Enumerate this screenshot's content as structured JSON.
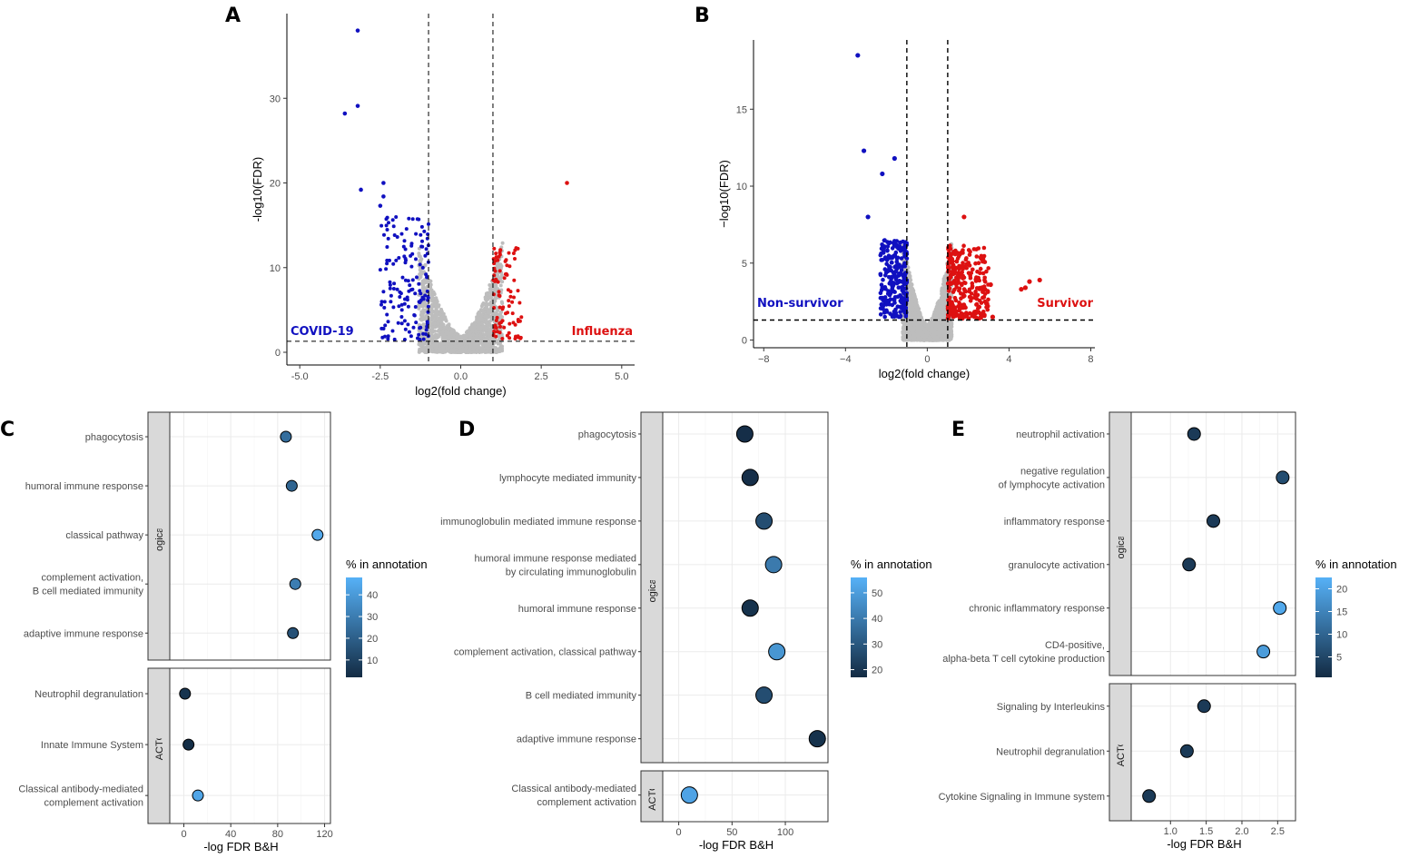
{
  "colors": {
    "down": "#1010c0",
    "up": "#dd1111",
    "ns": "#bdbdbd",
    "gradient_low": "#132b43",
    "gradient_high": "#56b1f7",
    "strip_fill": "#d9d9d9"
  },
  "panels": {
    "A": "A",
    "B": "B",
    "C": "C",
    "D": "D",
    "E": "E"
  },
  "chart_data": [
    {
      "id": "A",
      "type": "scatter",
      "subtype": "volcano",
      "xlabel": "log2(fold change)",
      "ylabel": "-log10(FDR)",
      "xlim": [
        -5.4,
        5.4
      ],
      "ylim": [
        -1.5,
        40
      ],
      "xticks": [
        -5.0,
        -2.5,
        0.0,
        2.5,
        5.0
      ],
      "xtick_labels": [
        "-5.0",
        "-2.5",
        "0.0",
        "2.5",
        "5.0"
      ],
      "yticks": [
        0,
        10,
        20,
        30
      ],
      "ytick_labels": [
        "0",
        "10",
        "20",
        "30"
      ],
      "vlines": [
        -1,
        1
      ],
      "hline": 1.3,
      "annotations": [
        {
          "text": "COVID-19",
          "color": "#1010c0",
          "side": "left"
        },
        {
          "text": "Influenza",
          "color": "#dd1111",
          "side": "right"
        }
      ],
      "labeled_points": [
        {
          "x": -3.2,
          "y": 38.0,
          "group": "down"
        },
        {
          "x": -3.6,
          "y": 28.2,
          "group": "down"
        },
        {
          "x": -3.2,
          "y": 29.1,
          "group": "down"
        },
        {
          "x": -3.1,
          "y": 19.2,
          "group": "down"
        },
        {
          "x": -2.4,
          "y": 20.0,
          "group": "down"
        },
        {
          "x": -2.4,
          "y": 18.4,
          "group": "down"
        },
        {
          "x": -2.5,
          "y": 17.3,
          "group": "down"
        },
        {
          "x": 3.3,
          "y": 20.0,
          "group": "up"
        }
      ],
      "clusters": [
        {
          "group": "down",
          "x_range": [
            -2.5,
            -1.0
          ],
          "y_range": [
            1.5,
            16
          ],
          "count": 150
        },
        {
          "group": "up",
          "x_range": [
            1.0,
            1.9
          ],
          "y_range": [
            1.5,
            12.5
          ],
          "count": 90
        },
        {
          "group": "ns",
          "x_range": [
            -1.3,
            1.3
          ],
          "y_range": [
            0,
            13
          ],
          "count": 1600
        }
      ]
    },
    {
      "id": "B",
      "type": "scatter",
      "subtype": "volcano",
      "xlabel": "log2(fold change)",
      "ylabel": "−log10(FDR)",
      "xlim": [
        -8.5,
        8.2
      ],
      "ylim": [
        -0.5,
        19.5
      ],
      "xticks": [
        -8,
        -4,
        0,
        4,
        8
      ],
      "xtick_labels": [
        "−8",
        "−4",
        "0",
        "4",
        "8"
      ],
      "yticks": [
        0,
        5,
        10,
        15
      ],
      "ytick_labels": [
        "0",
        "5",
        "10",
        "15"
      ],
      "vlines": [
        -1,
        1
      ],
      "hline": 1.3,
      "annotations": [
        {
          "text": "Non-survivor",
          "color": "#1010c0",
          "side": "left"
        },
        {
          "text": "Survivor",
          "color": "#dd1111",
          "side": "right"
        }
      ],
      "labeled_points": [
        {
          "x": -3.4,
          "y": 18.5,
          "group": "down"
        },
        {
          "x": -3.1,
          "y": 12.3,
          "group": "down"
        },
        {
          "x": -1.6,
          "y": 11.8,
          "group": "down"
        },
        {
          "x": -2.2,
          "y": 10.8,
          "group": "down"
        },
        {
          "x": -2.9,
          "y": 8.0,
          "group": "down"
        },
        {
          "x": 1.8,
          "y": 8.0,
          "group": "up"
        },
        {
          "x": 5.0,
          "y": 3.8,
          "group": "up"
        },
        {
          "x": 5.5,
          "y": 3.9,
          "group": "up"
        },
        {
          "x": 4.8,
          "y": 3.4,
          "group": "up"
        },
        {
          "x": 4.6,
          "y": 3.3,
          "group": "up"
        },
        {
          "x": 3.1,
          "y": 3.6,
          "group": "up"
        },
        {
          "x": 3.2,
          "y": 1.5,
          "group": "up"
        }
      ],
      "clusters": [
        {
          "group": "down",
          "x_range": [
            -2.3,
            -1.0
          ],
          "y_range": [
            1.5,
            6.5
          ],
          "count": 260
        },
        {
          "group": "up",
          "x_range": [
            1.0,
            3.0
          ],
          "y_range": [
            1.4,
            6.2
          ],
          "count": 300
        },
        {
          "group": "ns",
          "x_range": [
            -1.2,
            1.2
          ],
          "y_range": [
            0,
            6.5
          ],
          "count": 1800
        }
      ]
    },
    {
      "id": "C",
      "type": "scatter",
      "subtype": "faceted-dot",
      "xlabel": "-log FDR B&H",
      "xlim": [
        -12,
        125
      ],
      "xticks": [
        0,
        40,
        80,
        120
      ],
      "xtick_labels": [
        "0",
        "40",
        "80",
        "120"
      ],
      "legend": {
        "title": "% in annotation",
        "min": 2,
        "max": 48,
        "ticks": [
          10,
          20,
          30,
          40
        ]
      },
      "facets": [
        {
          "strip": "GO_Biological_Process",
          "items": [
            {
              "label": [
                "phagocytosis"
              ],
              "x": 87,
              "pct": 25
            },
            {
              "label": [
                "humoral immune response"
              ],
              "x": 92,
              "pct": 22
            },
            {
              "label": [
                "classical pathway"
              ],
              "x": 114,
              "pct": 45
            },
            {
              "label": [
                "complement activation,",
                "B cell mediated immunity"
              ],
              "x": 95,
              "pct": 30
            },
            {
              "label": [
                "adaptive immune response"
              ],
              "x": 93,
              "pct": 15
            }
          ]
        },
        {
          "strip": "REACTOME",
          "items": [
            {
              "label": [
                "Neutrophil degranulation"
              ],
              "x": 1,
              "pct": 5
            },
            {
              "label": [
                "Innate Immune System"
              ],
              "x": 4,
              "pct": 3
            },
            {
              "label": [
                "Classical antibody-mediated",
                "complement activation"
              ],
              "x": 12,
              "pct": 44
            }
          ]
        }
      ]
    },
    {
      "id": "D",
      "type": "scatter",
      "subtype": "faceted-dot",
      "xlabel": "-log FDR B&H",
      "xlim": [
        -15,
        140
      ],
      "xticks": [
        0,
        50,
        100
      ],
      "xtick_labels": [
        "0",
        "50",
        "100"
      ],
      "legend": {
        "title": "% in annotation",
        "min": 17,
        "max": 56,
        "ticks": [
          20,
          30,
          40,
          50
        ]
      },
      "facets": [
        {
          "strip": "GO_Biological_Process",
          "items": [
            {
              "label": [
                "phagocytosis"
              ],
              "x": 62,
              "pct": 18
            },
            {
              "label": [
                "lymphocyte mediated immunity"
              ],
              "x": 67,
              "pct": 18
            },
            {
              "label": [
                "immunoglobulin mediated immune response"
              ],
              "x": 80,
              "pct": 27
            },
            {
              "label": [
                "humoral immune response mediated",
                "by circulating immunoglobulin"
              ],
              "x": 89,
              "pct": 40
            },
            {
              "label": [
                "humoral immune response"
              ],
              "x": 67,
              "pct": 19
            },
            {
              "label": [
                "complement activation, classical pathway"
              ],
              "x": 92,
              "pct": 48
            },
            {
              "label": [
                "B cell mediated immunity"
              ],
              "x": 80,
              "pct": 27
            },
            {
              "label": [
                "adaptive immune response"
              ],
              "x": 130,
              "pct": 19
            }
          ]
        },
        {
          "strip": "REACTOME",
          "items": [
            {
              "label": [
                "Classical antibody-mediated",
                "complement activation"
              ],
              "x": 10,
              "pct": 52
            }
          ]
        }
      ]
    },
    {
      "id": "E",
      "type": "scatter",
      "subtype": "faceted-dot",
      "xlabel": "-log FDR B&H",
      "xlim": [
        0.45,
        2.75
      ],
      "xticks": [
        1.0,
        1.5,
        2.0,
        2.5
      ],
      "xtick_labels": [
        "1.0",
        "1.5",
        "2.0",
        "2.5"
      ],
      "legend": {
        "title": "% in annotation",
        "min": 0.5,
        "max": 22.5,
        "ticks": [
          5,
          10,
          15,
          20
        ]
      },
      "facets": [
        {
          "strip": "GO_Biological_Process",
          "items": [
            {
              "label": [
                "neutrophil activation"
              ],
              "x": 1.33,
              "pct": 3
            },
            {
              "label": [
                "negative regulation",
                "of lymphocyte activation"
              ],
              "x": 2.57,
              "pct": 6
            },
            {
              "label": [
                "inflammatory response"
              ],
              "x": 1.6,
              "pct": 3
            },
            {
              "label": [
                "granulocyte activation"
              ],
              "x": 1.26,
              "pct": 3
            },
            {
              "label": [
                "chronic inflammatory response"
              ],
              "x": 2.53,
              "pct": 21
            },
            {
              "label": [
                "CD4-positive,",
                "alpha-beta T cell cytokine production"
              ],
              "x": 2.3,
              "pct": 19
            }
          ]
        },
        {
          "strip": "REACTOME",
          "items": [
            {
              "label": [
                "Signaling by Interleukins"
              ],
              "x": 1.47,
              "pct": 3
            },
            {
              "label": [
                "Neutrophil degranulation"
              ],
              "x": 1.23,
              "pct": 3
            },
            {
              "label": [
                "Cytokine Signaling in Immune system"
              ],
              "x": 0.7,
              "pct": 3
            }
          ]
        }
      ]
    }
  ]
}
